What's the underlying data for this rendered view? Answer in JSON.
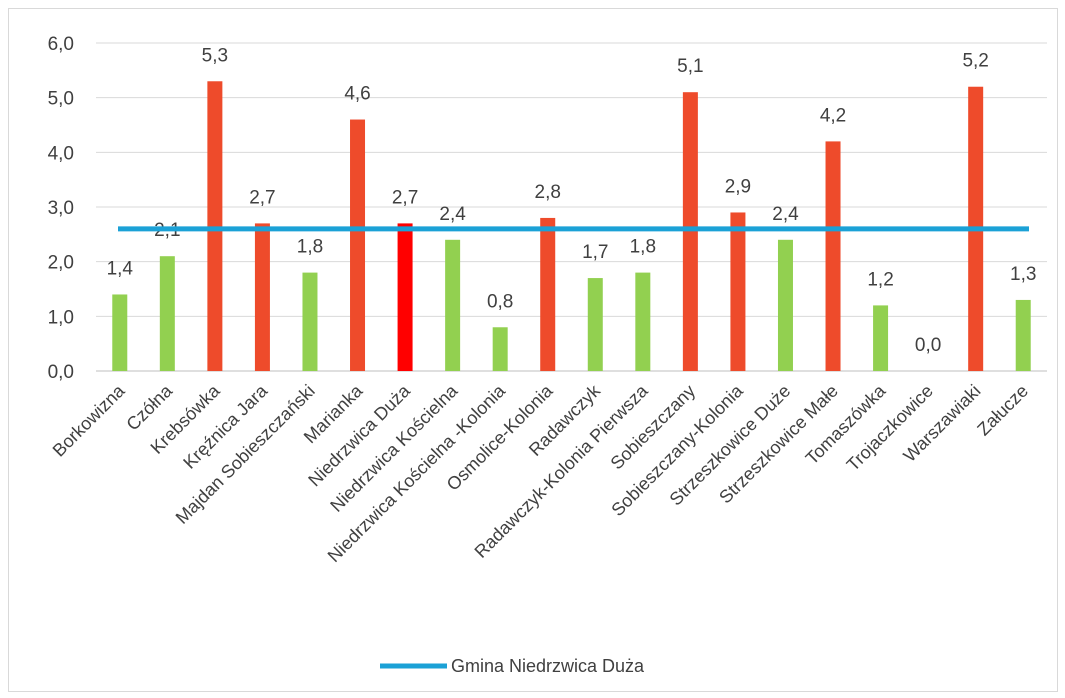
{
  "chart_data": {
    "type": "bar",
    "categories": [
      "Borkowizna",
      "Czółna",
      "Krebsówka",
      "Kręźnica Jara",
      "Majdan Sobieszczański",
      "Marianka",
      "Niedrzwica Duża",
      "Niedrzwica Kościelna",
      "Niedrzwica Kościelna -Kolonia",
      "Osmolice-Kolonia",
      "Radawczyk",
      "Radawczyk-Kolonia Pierwsza",
      "Sobieszczany",
      "Sobieszczany-Kolonia",
      "Strzeszkowice Duże",
      "Strzeszkowice Małe",
      "Tomaszówka",
      "Trojaczkowice",
      "Warszawiaki",
      "Załucze"
    ],
    "values": [
      1.4,
      2.1,
      5.3,
      2.7,
      1.8,
      4.6,
      2.7,
      2.4,
      0.8,
      2.8,
      1.7,
      1.8,
      5.1,
      2.9,
      2.4,
      4.2,
      1.2,
      0.0,
      5.2,
      1.3
    ],
    "data_labels": [
      "1,4",
      "2,1",
      "5,3",
      "2,7",
      "1,8",
      "4,6",
      "2,7",
      "2,4",
      "0,8",
      "2,8",
      "1,7",
      "1,8",
      "5,1",
      "2,9",
      "2,4",
      "4,2",
      "1,2",
      "0,0",
      "5,2",
      "1,3"
    ],
    "bar_colors": [
      "#92d050",
      "#92d050",
      "#ee4b2b",
      "#ee4b2b",
      "#92d050",
      "#ee4b2b",
      "#ff0000",
      "#92d050",
      "#92d050",
      "#ee4b2b",
      "#92d050",
      "#92d050",
      "#ee4b2b",
      "#ee4b2b",
      "#92d050",
      "#ee4b2b",
      "#92d050",
      "#92d050",
      "#ee4b2b",
      "#92d050"
    ],
    "reference_line": {
      "name": "Gmina Niedrzwica Duża",
      "value": 2.6,
      "color": "#1ba1d6"
    },
    "yticks": [
      0,
      1,
      2,
      3,
      4,
      5,
      6
    ],
    "ytick_labels": [
      "0,0",
      "1,0",
      "2,0",
      "3,0",
      "4,0",
      "5,0",
      "6,0"
    ],
    "ylim": [
      0,
      6
    ],
    "grid": true,
    "legend_position": "bottom"
  }
}
